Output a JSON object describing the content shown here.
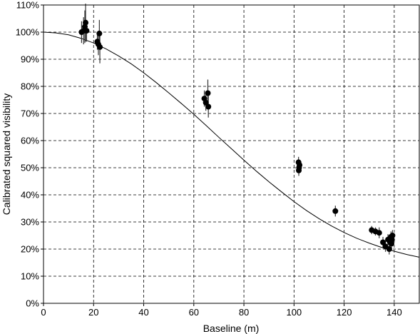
{
  "chart_data": {
    "type": "scatter",
    "xlabel": "Baseline (m)",
    "ylabel": "Calibrated squared visibility",
    "xlim": [
      0,
      150
    ],
    "ylim": [
      0,
      1.1
    ],
    "x_ticks": [
      0,
      20,
      40,
      60,
      80,
      100,
      120,
      140
    ],
    "y_ticks": [
      0,
      0.1,
      0.2,
      0.3,
      0.4,
      0.5,
      0.6,
      0.7,
      0.8,
      0.9,
      1.0,
      1.1
    ],
    "x_tick_labels": [
      "0",
      "20",
      "40",
      "60",
      "80",
      "100",
      "120",
      "140"
    ],
    "y_tick_labels": [
      "0%",
      "10%",
      "20%",
      "30%",
      "40%",
      "50%",
      "60%",
      "70%",
      "80%",
      "90%",
      "100%",
      "110%"
    ],
    "grid": true,
    "series": [
      {
        "kind": "points_with_error_bars",
        "points": [
          {
            "x": 15.2,
            "y": 1.0,
            "err": 0.04
          },
          {
            "x": 16.0,
            "y": 1.005,
            "err": 0.05
          },
          {
            "x": 16.5,
            "y": 1.02,
            "err": 0.06
          },
          {
            "x": 16.8,
            "y": 1.035,
            "err": 0.07
          },
          {
            "x": 17.2,
            "y": 1.005,
            "err": 0.04
          },
          {
            "x": 21.5,
            "y": 0.965,
            "err": 0.03
          },
          {
            "x": 21.9,
            "y": 0.955,
            "err": 0.04
          },
          {
            "x": 22.3,
            "y": 0.995,
            "err": 0.05
          },
          {
            "x": 22.5,
            "y": 0.945,
            "err": 0.06
          },
          {
            "x": 64.2,
            "y": 0.755,
            "err": 0.03
          },
          {
            "x": 64.8,
            "y": 0.74,
            "err": 0.03
          },
          {
            "x": 65.6,
            "y": 0.775,
            "err": 0.05
          },
          {
            "x": 65.8,
            "y": 0.725,
            "err": 0.04
          },
          {
            "x": 101.8,
            "y": 0.52,
            "err": 0.02
          },
          {
            "x": 102.0,
            "y": 0.5,
            "err": 0.02
          },
          {
            "x": 101.9,
            "y": 0.49,
            "err": 0.02
          },
          {
            "x": 102.2,
            "y": 0.51,
            "err": 0.015
          },
          {
            "x": 116.5,
            "y": 0.34,
            "err": 0.02
          },
          {
            "x": 131.0,
            "y": 0.27,
            "err": 0.015
          },
          {
            "x": 132.5,
            "y": 0.265,
            "err": 0.015
          },
          {
            "x": 134.0,
            "y": 0.26,
            "err": 0.02
          },
          {
            "x": 135.5,
            "y": 0.225,
            "err": 0.02
          },
          {
            "x": 136.5,
            "y": 0.21,
            "err": 0.02
          },
          {
            "x": 137.5,
            "y": 0.235,
            "err": 0.02
          },
          {
            "x": 138.0,
            "y": 0.2,
            "err": 0.02
          },
          {
            "x": 138.3,
            "y": 0.225,
            "err": 0.03
          },
          {
            "x": 138.7,
            "y": 0.245,
            "err": 0.02
          },
          {
            "x": 138.9,
            "y": 0.22,
            "err": 0.025
          },
          {
            "x": 139.1,
            "y": 0.235,
            "err": 0.02
          },
          {
            "x": 139.3,
            "y": 0.25,
            "err": 0.02
          }
        ]
      },
      {
        "kind": "model_curve",
        "x": [
          0,
          5,
          10,
          15,
          20,
          25,
          30,
          35,
          40,
          45,
          50,
          55,
          60,
          65,
          70,
          75,
          80,
          85,
          90,
          95,
          100,
          105,
          110,
          115,
          120,
          125,
          130,
          135,
          140,
          145,
          150
        ],
        "y": [
          1.0,
          0.997,
          0.99,
          0.977,
          0.96,
          0.938,
          0.912,
          0.883,
          0.85,
          0.814,
          0.776,
          0.737,
          0.697,
          0.655,
          0.612,
          0.57,
          0.528,
          0.487,
          0.448,
          0.411,
          0.375,
          0.342,
          0.312,
          0.285,
          0.261,
          0.24,
          0.222,
          0.206,
          0.192,
          0.18,
          0.17
        ]
      }
    ]
  }
}
